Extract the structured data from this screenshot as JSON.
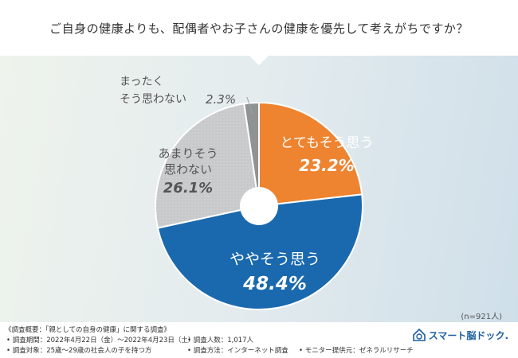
{
  "question": "ご自身の健康よりも、配偶者やお子さんの健康を優先して考えがちですか？",
  "sample_size": "(n=921人)",
  "chart_data": {
    "type": "pie",
    "title": "ご自身の健康よりも、配偶者やお子さんの健康を優先して考えがちですか？",
    "donut": true,
    "slices": [
      {
        "label": "とてもそう思う",
        "value": 23.2,
        "display": "23.2%",
        "color": "#ee8330"
      },
      {
        "label": "ややそう思う",
        "value": 48.4,
        "display": "48.4%",
        "color": "#1a69ae"
      },
      {
        "label": "あまりそう思わない",
        "value": 26.1,
        "display": "26.1%",
        "color": "#c8c9ca"
      },
      {
        "label": "まったくそう思わない",
        "value": 2.3,
        "display": "2.3%",
        "color": "#8f9394"
      }
    ]
  },
  "footer": {
    "overview": "《調査概要：「親としての自身の健康」に関する調査》",
    "period": "• 調査期間：2022年4月22日（金）～2022年4月23日（土）",
    "count": "• 調査人数：1,017人",
    "target": "• 調査対象：25歳～29歳の社会人の子を持つ方",
    "method": "• 調査方法：インターネット調査",
    "provider": "• モニター提供元：ゼネラルリサーチ"
  },
  "logo_text": "スマート脳ドック."
}
